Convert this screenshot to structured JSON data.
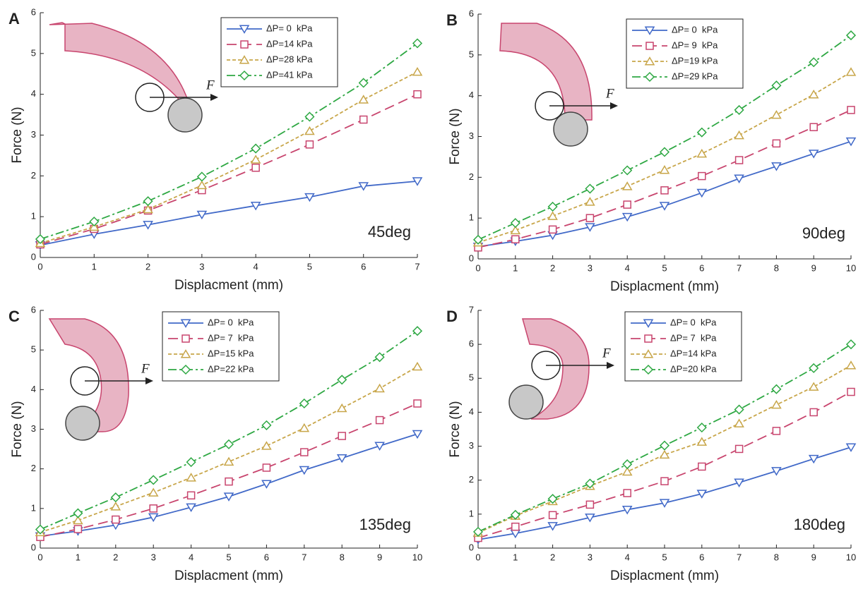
{
  "chart_data": [
    {
      "type": "line",
      "panel": "A",
      "annotation": "45deg",
      "force_label": "F",
      "xlabel": "Displacment (mm)",
      "ylabel": "Force (N)",
      "x": [
        0,
        1,
        2,
        3,
        4,
        5,
        6,
        7
      ],
      "xlim": [
        0,
        7
      ],
      "xticks": [
        0,
        1,
        2,
        3,
        4,
        5,
        6,
        7
      ],
      "ylim": [
        0,
        6
      ],
      "yticks": [
        0,
        1,
        2,
        3,
        4,
        5,
        6
      ],
      "series": [
        {
          "name": "ΔP= 0  kPa",
          "color": "#4169c8",
          "marker": "triangle-down",
          "dash": "solid",
          "values": [
            0.3,
            0.57,
            0.8,
            1.05,
            1.27,
            1.48,
            1.75,
            1.87
          ]
        },
        {
          "name": "ΔP=14 kPa",
          "color": "#c8456e",
          "marker": "square",
          "dash": "long",
          "values": [
            0.32,
            0.7,
            1.15,
            1.65,
            2.2,
            2.77,
            3.38,
            4.0
          ]
        },
        {
          "name": "ΔP=28 kPa",
          "color": "#c8a64a",
          "marker": "triangle-up",
          "dash": "short",
          "values": [
            0.35,
            0.75,
            1.18,
            1.77,
            2.4,
            3.1,
            3.87,
            4.55
          ]
        },
        {
          "name": "ΔP=41 kPa",
          "color": "#2ea843",
          "marker": "diamond",
          "dash": "dashdot",
          "values": [
            0.45,
            0.88,
            1.38,
            1.98,
            2.67,
            3.45,
            4.28,
            5.25
          ]
        }
      ]
    },
    {
      "type": "line",
      "panel": "B",
      "annotation": "90deg",
      "force_label": "F",
      "xlabel": "Displacment (mm)",
      "ylabel": "Force (N)",
      "x": [
        0,
        1,
        2,
        3,
        4,
        5,
        6,
        7,
        8,
        9,
        10
      ],
      "xlim": [
        0,
        10
      ],
      "xticks": [
        0,
        1,
        2,
        3,
        4,
        5,
        6,
        7,
        8,
        9,
        10
      ],
      "ylim": [
        0,
        6
      ],
      "yticks": [
        0,
        1,
        2,
        3,
        4,
        5,
        6
      ],
      "series": [
        {
          "name": "ΔP= 0  kPa",
          "color": "#4169c8",
          "marker": "triangle-down",
          "dash": "solid",
          "values": [
            0.3,
            0.43,
            0.58,
            0.78,
            1.03,
            1.3,
            1.62,
            1.97,
            2.27,
            2.58,
            2.88
          ]
        },
        {
          "name": "ΔP= 9  kPa",
          "color": "#c8456e",
          "marker": "square",
          "dash": "long",
          "values": [
            0.28,
            0.48,
            0.72,
            1.0,
            1.33,
            1.68,
            2.03,
            2.42,
            2.83,
            3.23,
            3.65
          ]
        },
        {
          "name": "ΔP=19 kPa",
          "color": "#c8a64a",
          "marker": "triangle-up",
          "dash": "short",
          "values": [
            0.4,
            0.7,
            1.05,
            1.4,
            1.78,
            2.18,
            2.58,
            3.03,
            3.53,
            4.03,
            4.58
          ]
        },
        {
          "name": "ΔP=29 kPa",
          "color": "#2ea843",
          "marker": "diamond",
          "dash": "dashdot",
          "values": [
            0.47,
            0.88,
            1.28,
            1.72,
            2.17,
            2.62,
            3.1,
            3.65,
            4.25,
            4.82,
            5.48
          ]
        }
      ]
    },
    {
      "type": "line",
      "panel": "C",
      "annotation": "135deg",
      "force_label": "F",
      "xlabel": "Displacment (mm)",
      "ylabel": "Force (N)",
      "x": [
        0,
        1,
        2,
        3,
        4,
        5,
        6,
        7,
        8,
        9,
        10
      ],
      "xlim": [
        0,
        10
      ],
      "xticks": [
        0,
        1,
        2,
        3,
        4,
        5,
        6,
        7,
        8,
        9,
        10
      ],
      "ylim": [
        0,
        6
      ],
      "yticks": [
        0,
        1,
        2,
        3,
        4,
        5,
        6
      ],
      "series": [
        {
          "name": "ΔP= 0  kPa",
          "color": "#4169c8",
          "marker": "triangle-down",
          "dash": "solid",
          "values": [
            0.3,
            0.43,
            0.58,
            0.78,
            1.03,
            1.3,
            1.62,
            1.97,
            2.27,
            2.58,
            2.88
          ]
        },
        {
          "name": "ΔP= 7  kPa",
          "color": "#c8456e",
          "marker": "square",
          "dash": "long",
          "values": [
            0.28,
            0.48,
            0.72,
            1.0,
            1.33,
            1.68,
            2.03,
            2.42,
            2.83,
            3.23,
            3.65
          ]
        },
        {
          "name": "ΔP=15 kPa",
          "color": "#c8a64a",
          "marker": "triangle-up",
          "dash": "short",
          "values": [
            0.4,
            0.7,
            1.05,
            1.4,
            1.78,
            2.18,
            2.58,
            3.03,
            3.53,
            4.03,
            4.58
          ]
        },
        {
          "name": "ΔP=22 kPa",
          "color": "#2ea843",
          "marker": "diamond",
          "dash": "dashdot",
          "values": [
            0.47,
            0.88,
            1.28,
            1.72,
            2.17,
            2.62,
            3.1,
            3.65,
            4.25,
            4.82,
            5.48
          ]
        }
      ]
    },
    {
      "type": "line",
      "panel": "D",
      "annotation": "180deg",
      "force_label": "F",
      "xlabel": "Displacment (mm)",
      "ylabel": "Force (N)",
      "x": [
        0,
        1,
        2,
        3,
        4,
        5,
        6,
        7,
        8,
        9,
        10
      ],
      "xlim": [
        0,
        10
      ],
      "xticks": [
        0,
        1,
        2,
        3,
        4,
        5,
        6,
        7,
        8,
        9,
        10
      ],
      "ylim": [
        0,
        7
      ],
      "yticks": [
        0,
        1,
        2,
        3,
        4,
        5,
        6,
        7
      ],
      "series": [
        {
          "name": "ΔP= 0  kPa",
          "color": "#4169c8",
          "marker": "triangle-down",
          "dash": "solid",
          "values": [
            0.25,
            0.43,
            0.65,
            0.9,
            1.13,
            1.33,
            1.6,
            1.93,
            2.27,
            2.63,
            2.97
          ]
        },
        {
          "name": "ΔP= 7  kPa",
          "color": "#c8456e",
          "marker": "square",
          "dash": "long",
          "values": [
            0.3,
            0.63,
            0.97,
            1.28,
            1.62,
            1.97,
            2.4,
            2.92,
            3.45,
            4.0,
            4.6
          ]
        },
        {
          "name": "ΔP=14 kPa",
          "color": "#c8a64a",
          "marker": "triangle-up",
          "dash": "short",
          "values": [
            0.45,
            0.95,
            1.38,
            1.83,
            2.25,
            2.75,
            3.13,
            3.67,
            4.22,
            4.75,
            5.38
          ]
        },
        {
          "name": "ΔP=20 kPa",
          "color": "#2ea843",
          "marker": "diamond",
          "dash": "dashdot",
          "values": [
            0.48,
            0.98,
            1.45,
            1.9,
            2.47,
            3.02,
            3.55,
            4.08,
            4.68,
            5.3,
            6.0
          ]
        }
      ]
    }
  ]
}
